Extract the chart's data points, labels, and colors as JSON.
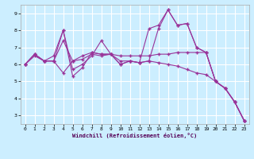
{
  "xlabel": "Windchill (Refroidissement éolien,°C)",
  "bg_color": "#cceeff",
  "line_color": "#993399",
  "grid_color": "#ffffff",
  "xlim": [
    -0.5,
    23.5
  ],
  "ylim": [
    2.5,
    9.5
  ],
  "xticks": [
    0,
    1,
    2,
    3,
    4,
    5,
    6,
    7,
    8,
    9,
    10,
    11,
    12,
    13,
    14,
    15,
    16,
    17,
    18,
    19,
    20,
    21,
    22,
    23
  ],
  "yticks": [
    3,
    4,
    5,
    6,
    7,
    8,
    9
  ],
  "series": [
    [
      6.0,
      6.6,
      6.2,
      6.2,
      8.0,
      5.3,
      5.8,
      6.7,
      6.6,
      6.6,
      6.0,
      6.2,
      6.1,
      6.2,
      8.1,
      9.2,
      8.3,
      8.4,
      7.0,
      6.7,
      5.0,
      4.6,
      3.8,
      2.7
    ],
    [
      6.0,
      6.6,
      6.2,
      6.2,
      7.4,
      6.2,
      6.5,
      6.7,
      6.6,
      6.6,
      6.5,
      6.5,
      6.5,
      6.5,
      6.6,
      6.6,
      6.7,
      6.7,
      6.7,
      6.7,
      5.0,
      4.6,
      3.8,
      2.7
    ],
    [
      6.0,
      6.6,
      6.2,
      6.5,
      8.0,
      5.7,
      6.0,
      6.5,
      7.4,
      6.6,
      6.0,
      6.2,
      6.1,
      8.1,
      8.3,
      9.2,
      8.3,
      8.4,
      7.0,
      6.7,
      5.0,
      4.6,
      3.8,
      2.7
    ],
    [
      6.0,
      6.5,
      6.2,
      6.2,
      5.5,
      6.2,
      6.3,
      6.6,
      6.5,
      6.6,
      6.2,
      6.2,
      6.1,
      6.2,
      6.1,
      6.0,
      5.9,
      5.7,
      5.5,
      5.4,
      5.0,
      4.6,
      3.8,
      2.7
    ]
  ]
}
